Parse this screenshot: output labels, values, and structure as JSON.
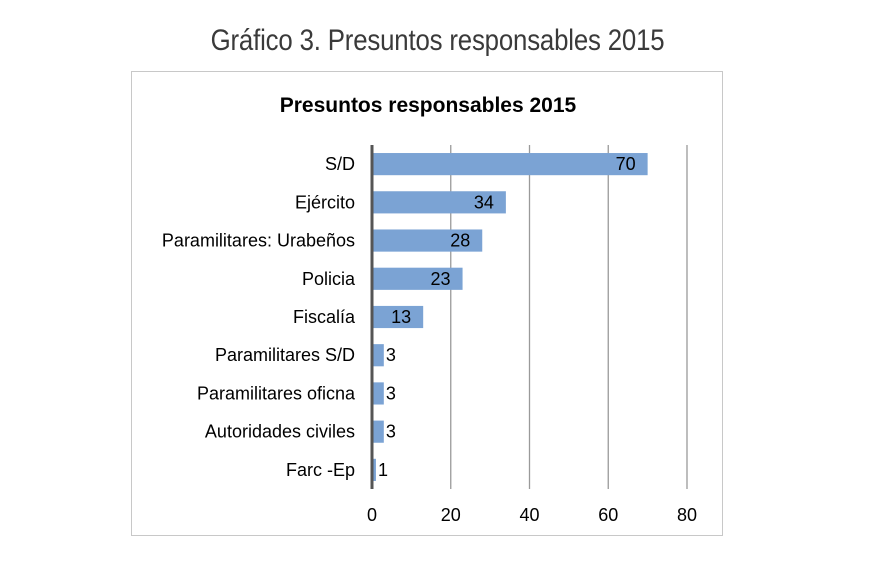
{
  "caption": "Gráfico 3. Presuntos responsables 2015",
  "chart_data": {
    "type": "bar",
    "orientation": "horizontal",
    "title": "Presuntos responsables 2015",
    "categories": [
      "S/D",
      "Ejército",
      "Paramilitares: Urabeños",
      "Policia",
      "Fiscalía",
      "Paramilitares S/D",
      "Paramilitares oficna",
      "Autoridades civiles",
      "Farc -Ep"
    ],
    "values": [
      70,
      34,
      28,
      23,
      13,
      3,
      3,
      3,
      1
    ],
    "xlim": [
      0,
      80
    ],
    "xticks": [
      0,
      20,
      40,
      60,
      80
    ],
    "grid": true,
    "legend": "none",
    "bar_color": "#7ba3d4"
  }
}
